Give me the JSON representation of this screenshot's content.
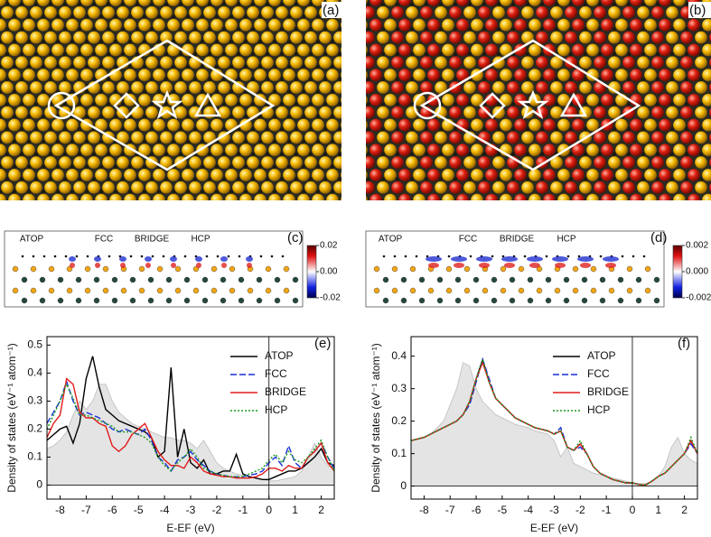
{
  "panels": {
    "a": {
      "label": "(a)"
    },
    "b": {
      "label": "(b)"
    },
    "c": {
      "label": "(c)",
      "sites": [
        "ATOP",
        "FCC",
        "BRIDGE",
        "HCP"
      ],
      "clim": [
        -0.02,
        0.02
      ],
      "cticks": [
        0.02,
        {
          "value": 0,
          "label": "0.00"
        },
        -0.02
      ]
    },
    "d": {
      "label": "(d)",
      "sites": [
        "ATOP",
        "FCC",
        "BRIDGE",
        "HCP"
      ],
      "clim": [
        -0.002,
        0.002
      ],
      "cticks": [
        0.002,
        {
          "value": 0,
          "label": "0.000"
        },
        -0.002
      ]
    }
  },
  "chart_data": [
    {
      "type": "line",
      "panel_label": "(e)",
      "xlabel": "E-EF (eV)",
      "ylabel": "Density of states (eV⁻¹ atom⁻¹)",
      "x": [
        -8.5,
        -8.25,
        -8,
        -7.75,
        -7.5,
        -7.25,
        -7,
        -6.75,
        -6.5,
        -6.25,
        -6,
        -5.75,
        -5.5,
        -5.25,
        -5,
        -4.75,
        -4.5,
        -4.25,
        -4,
        -3.75,
        -3.5,
        -3.25,
        -3,
        -2.75,
        -2.5,
        -2.25,
        -2,
        -1.75,
        -1.5,
        -1.25,
        -1,
        -0.75,
        -0.5,
        -0.25,
        0,
        0.25,
        0.5,
        0.75,
        1,
        1.25,
        1.5,
        1.75,
        2,
        2.25,
        2.5
      ],
      "xlim": [
        -8.5,
        2.5
      ],
      "xticks": [
        -8,
        -7,
        -6,
        -5,
        -4,
        -3,
        -2,
        -1,
        0,
        1,
        2
      ],
      "ylim": [
        -0.05,
        0.53
      ],
      "yticks": [
        0,
        0.1,
        0.2,
        0.3,
        0.4,
        0.5
      ],
      "vlines": [
        0
      ],
      "hlines": [
        0
      ],
      "series": [
        {
          "color": "#bdbdbd",
          "fill": true,
          "values": [
            0.13,
            0.14,
            0.16,
            0.19,
            0.25,
            0.3,
            0.27,
            0.3,
            0.36,
            0.36,
            0.3,
            0.26,
            0.24,
            0.22,
            0.21,
            0.2,
            0.19,
            0.18,
            0.17,
            0.17,
            0.16,
            0.16,
            0.15,
            0.13,
            0.16,
            0.12,
            0.08,
            0.06,
            0.05,
            0.04,
            0.035,
            0.03,
            0.025,
            0.02,
            0.015,
            0.015,
            0.02,
            0.025,
            0.03,
            0.05,
            0.1,
            0.15,
            0.1,
            0.07,
            0.06
          ]
        },
        {
          "name": "ATOP",
          "color": "#000000",
          "dash": "none",
          "values": [
            0.16,
            0.18,
            0.2,
            0.21,
            0.15,
            0.22,
            0.38,
            0.46,
            0.35,
            0.27,
            0.25,
            0.23,
            0.22,
            0.21,
            0.2,
            0.19,
            0.17,
            0.1,
            0.12,
            0.42,
            0.1,
            0.2,
            0.08,
            0.06,
            0.09,
            0.04,
            0.04,
            0.05,
            0.05,
            0.11,
            0.04,
            0.03,
            0.025,
            0.02,
            0.02,
            0.03,
            0.04,
            0.05,
            0.05,
            0.06,
            0.08,
            0.1,
            0.13,
            0.08,
            0.07
          ]
        },
        {
          "name": "FCC",
          "color": "#1a2fd6",
          "dash": "7,3",
          "values": [
            0.22,
            0.26,
            0.3,
            0.37,
            0.3,
            0.25,
            0.26,
            0.25,
            0.24,
            0.22,
            0.2,
            0.19,
            0.2,
            0.19,
            0.18,
            0.2,
            0.16,
            0.1,
            0.08,
            0.05,
            0.09,
            0.1,
            0.12,
            0.09,
            0.07,
            0.05,
            0.04,
            0.035,
            0.03,
            0.03,
            0.03,
            0.035,
            0.04,
            0.05,
            0.08,
            0.1,
            0.07,
            0.14,
            0.08,
            0.06,
            0.1,
            0.12,
            0.15,
            0.1,
            0.06
          ]
        },
        {
          "name": "BRIDGE",
          "color": "#e01b1b",
          "dash": "none",
          "values": [
            0.17,
            0.22,
            0.25,
            0.38,
            0.36,
            0.26,
            0.24,
            0.24,
            0.22,
            0.21,
            0.14,
            0.12,
            0.14,
            0.18,
            0.2,
            0.22,
            0.17,
            0.12,
            0.09,
            0.07,
            0.07,
            0.06,
            0.1,
            0.08,
            0.05,
            0.04,
            0.035,
            0.03,
            0.03,
            0.025,
            0.025,
            0.025,
            0.03,
            0.04,
            0.06,
            0.06,
            0.05,
            0.07,
            0.06,
            0.06,
            0.1,
            0.12,
            0.15,
            0.08,
            0.05
          ]
        },
        {
          "name": "HCP",
          "color": "#1a9a1a",
          "dash": "2,2",
          "values": [
            0.2,
            0.25,
            0.3,
            0.36,
            0.31,
            0.25,
            0.25,
            0.24,
            0.23,
            0.22,
            0.21,
            0.19,
            0.19,
            0.19,
            0.18,
            0.17,
            0.15,
            0.1,
            0.07,
            0.05,
            0.08,
            0.1,
            0.13,
            0.1,
            0.06,
            0.05,
            0.04,
            0.035,
            0.03,
            0.03,
            0.03,
            0.04,
            0.05,
            0.06,
            0.09,
            0.11,
            0.08,
            0.12,
            0.09,
            0.08,
            0.1,
            0.13,
            0.16,
            0.1,
            0.05
          ]
        }
      ]
    },
    {
      "type": "line",
      "panel_label": "(f)",
      "xlabel": "E-EF (eV)",
      "ylabel": "Density of states (eV⁻¹ atom⁻¹)",
      "x": [
        -8.5,
        -8.25,
        -8,
        -7.75,
        -7.5,
        -7.25,
        -7,
        -6.75,
        -6.5,
        -6.25,
        -6,
        -5.75,
        -5.5,
        -5.25,
        -5,
        -4.75,
        -4.5,
        -4.25,
        -4,
        -3.75,
        -3.5,
        -3.25,
        -3,
        -2.75,
        -2.5,
        -2.25,
        -2,
        -1.75,
        -1.5,
        -1.25,
        -1,
        -0.75,
        -0.5,
        -0.25,
        0,
        0.25,
        0.5,
        0.75,
        1,
        1.25,
        1.5,
        1.75,
        2,
        2.25,
        2.5
      ],
      "xlim": [
        -8.5,
        2.5
      ],
      "xticks": [
        -8,
        -7,
        -6,
        -5,
        -4,
        -3,
        -2,
        -1,
        0,
        1,
        2
      ],
      "ylim": [
        -0.04,
        0.46
      ],
      "yticks": [
        0,
        0.1,
        0.2,
        0.3,
        0.4
      ],
      "vlines": [
        0
      ],
      "hlines": [
        0
      ],
      "series": [
        {
          "color": "#bdbdbd",
          "fill": true,
          "values": [
            0.14,
            0.145,
            0.15,
            0.16,
            0.18,
            0.2,
            0.25,
            0.3,
            0.38,
            0.37,
            0.3,
            0.26,
            0.24,
            0.22,
            0.21,
            0.2,
            0.19,
            0.185,
            0.18,
            0.17,
            0.165,
            0.16,
            0.14,
            0.09,
            0.12,
            0.07,
            0.06,
            0.05,
            0.04,
            0.035,
            0.03,
            0.025,
            0.02,
            0.015,
            0.01,
            0.008,
            0.008,
            0.015,
            0.03,
            0.06,
            0.12,
            0.15,
            0.1,
            0.08,
            0.07
          ]
        },
        {
          "name": "ATOP",
          "color": "#000000",
          "dash": "none",
          "values": [
            0.14,
            0.145,
            0.15,
            0.16,
            0.17,
            0.18,
            0.19,
            0.2,
            0.22,
            0.26,
            0.33,
            0.39,
            0.32,
            0.27,
            0.25,
            0.23,
            0.21,
            0.2,
            0.19,
            0.18,
            0.175,
            0.17,
            0.16,
            0.17,
            0.12,
            0.11,
            0.13,
            0.1,
            0.06,
            0.04,
            0.03,
            0.02,
            0.015,
            0.01,
            0.01,
            0.005,
            0.003,
            0.015,
            0.03,
            0.04,
            0.06,
            0.08,
            0.1,
            0.14,
            0.1
          ]
        },
        {
          "name": "FCC",
          "color": "#1a2fd6",
          "dash": "7,3",
          "values": [
            0.14,
            0.145,
            0.15,
            0.16,
            0.17,
            0.18,
            0.19,
            0.2,
            0.22,
            0.25,
            0.32,
            0.39,
            0.33,
            0.27,
            0.25,
            0.23,
            0.21,
            0.2,
            0.19,
            0.18,
            0.175,
            0.17,
            0.16,
            0.18,
            0.12,
            0.11,
            0.12,
            0.1,
            0.06,
            0.04,
            0.03,
            0.02,
            0.015,
            0.01,
            0.01,
            0.005,
            0.003,
            0.015,
            0.03,
            0.04,
            0.06,
            0.08,
            0.1,
            0.13,
            0.1
          ]
        },
        {
          "name": "BRIDGE",
          "color": "#e01b1b",
          "dash": "none",
          "values": [
            0.14,
            0.145,
            0.15,
            0.16,
            0.17,
            0.18,
            0.19,
            0.2,
            0.22,
            0.26,
            0.33,
            0.38,
            0.32,
            0.27,
            0.25,
            0.23,
            0.21,
            0.2,
            0.19,
            0.18,
            0.175,
            0.17,
            0.16,
            0.17,
            0.12,
            0.11,
            0.13,
            0.1,
            0.06,
            0.04,
            0.03,
            0.02,
            0.015,
            0.01,
            0.01,
            0.005,
            0.003,
            0.015,
            0.03,
            0.04,
            0.06,
            0.08,
            0.1,
            0.14,
            0.1
          ]
        },
        {
          "name": "HCP",
          "color": "#1a9a1a",
          "dash": "2,2",
          "values": [
            0.14,
            0.145,
            0.15,
            0.16,
            0.17,
            0.18,
            0.19,
            0.2,
            0.22,
            0.26,
            0.33,
            0.39,
            0.32,
            0.27,
            0.25,
            0.23,
            0.21,
            0.2,
            0.19,
            0.18,
            0.175,
            0.17,
            0.16,
            0.17,
            0.12,
            0.11,
            0.14,
            0.1,
            0.06,
            0.04,
            0.03,
            0.02,
            0.015,
            0.01,
            0.01,
            0.005,
            0.003,
            0.015,
            0.03,
            0.04,
            0.06,
            0.08,
            0.1,
            0.15,
            0.1
          ]
        }
      ]
    }
  ]
}
